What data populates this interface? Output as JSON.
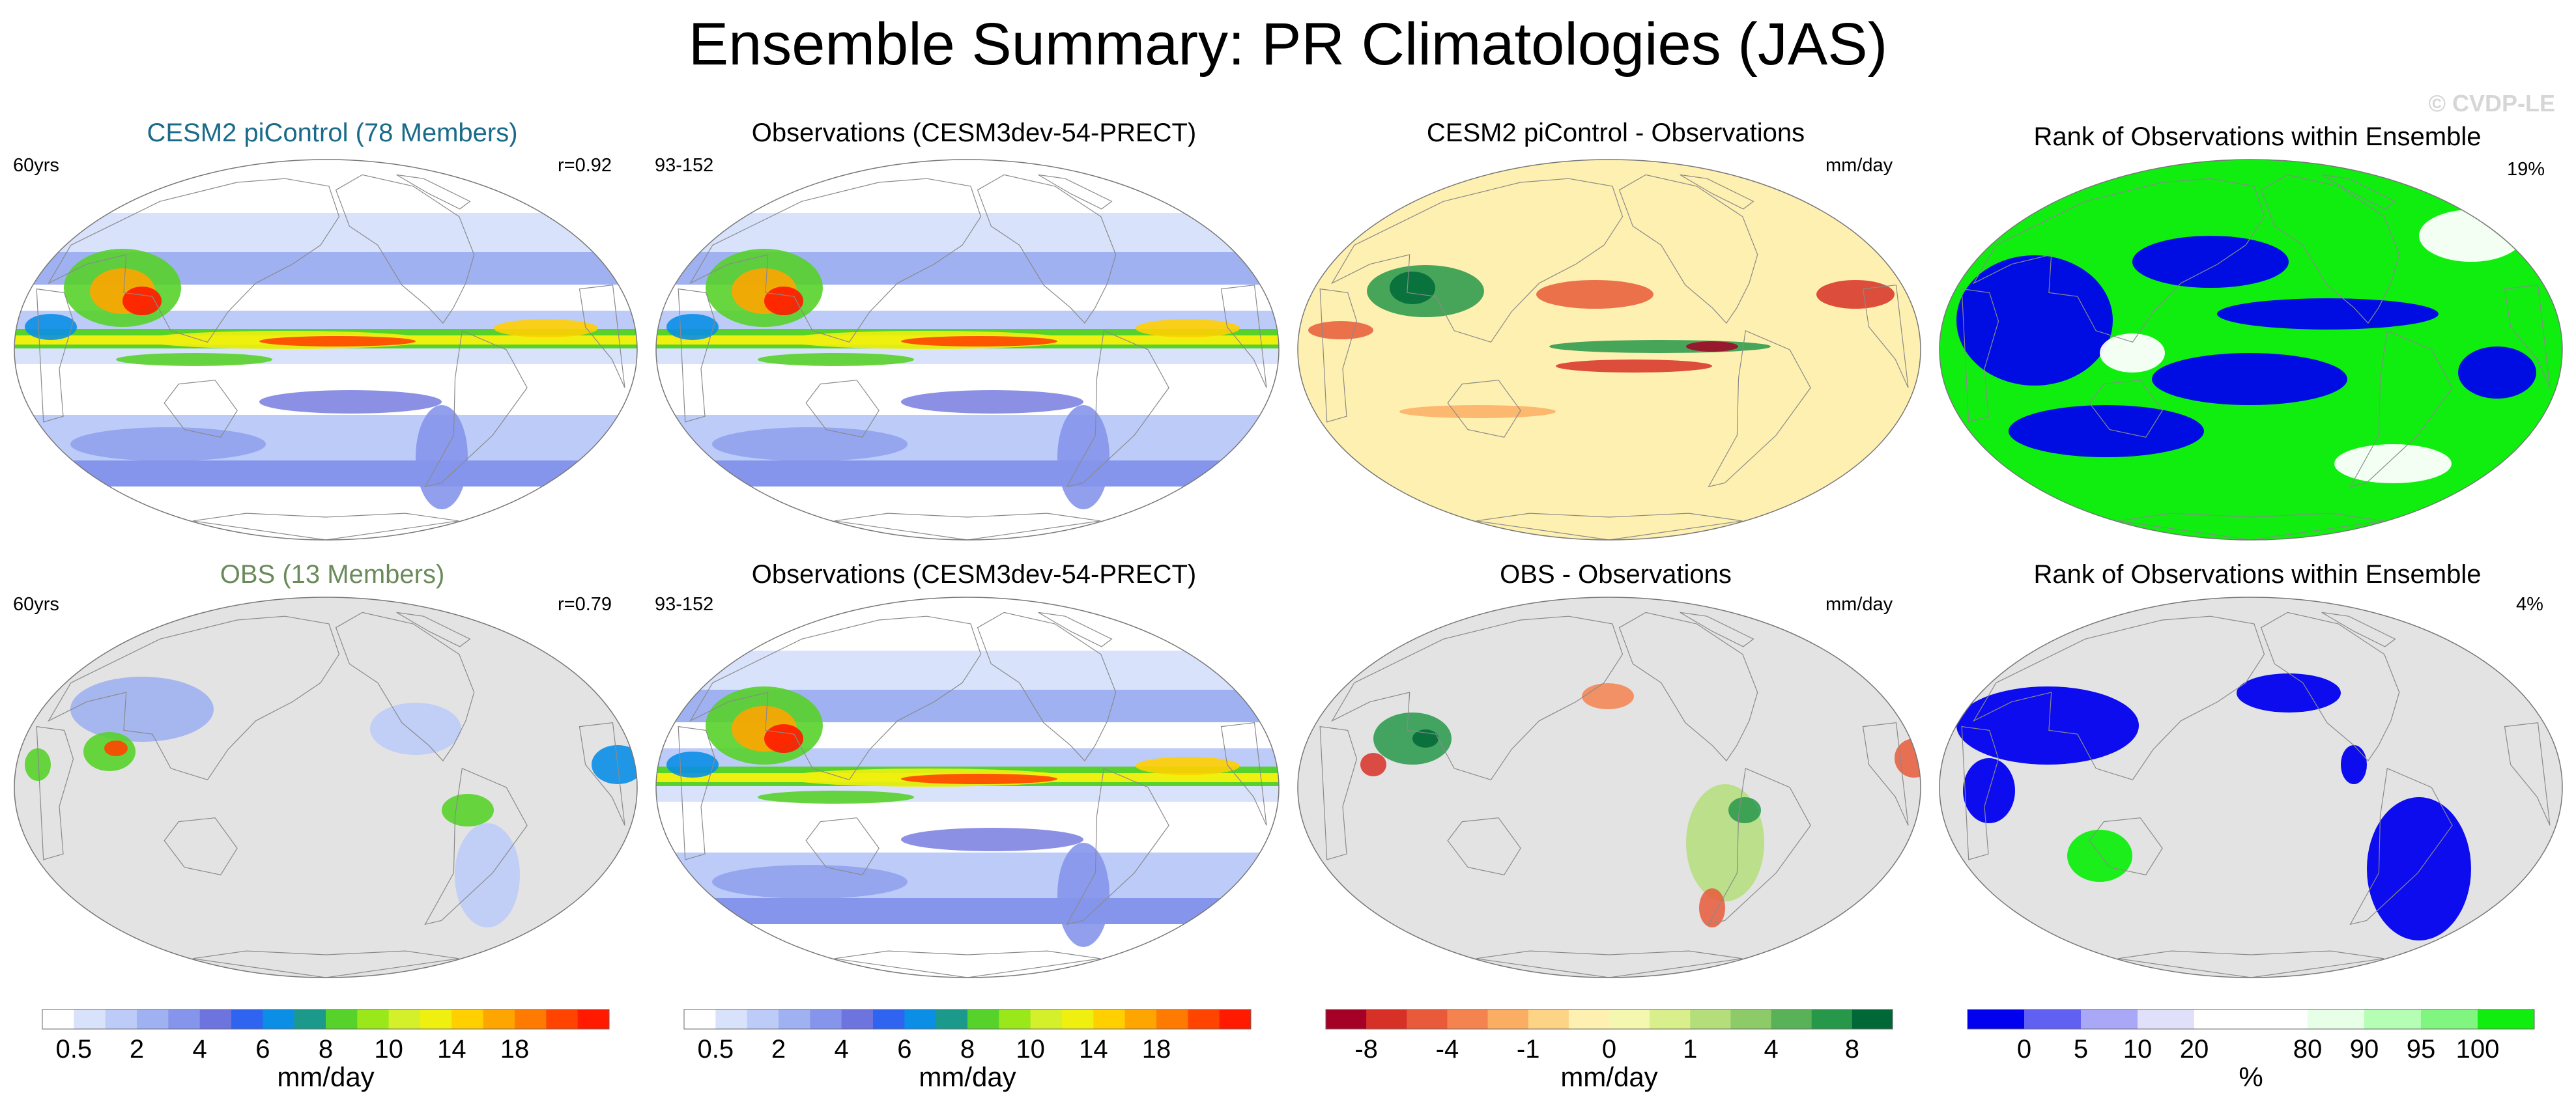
{
  "title": "Ensemble Summary: PR Climatologies (JAS)",
  "watermark": "© CVDP-LE",
  "colors": {
    "title_model": "#1a6a8a",
    "title_obs_ens": "#6a8a5a",
    "land_mask": "#e3e3e3",
    "coast": "#8a8a8a"
  },
  "panels": {
    "r1c1": {
      "title": "CESM2 piControl (78 Members)",
      "left_tag": "60yrs",
      "right_tag": "r=0.92"
    },
    "r1c2": {
      "title": "Observations (CESM3dev-54-PRECT)",
      "left_tag": "93-152",
      "right_tag": ""
    },
    "r1c3": {
      "title": "CESM2 piControl - Observations",
      "left_tag": "",
      "right_tag": "mm/day"
    },
    "r1c4": {
      "title": "Rank of Observations within Ensemble",
      "left_tag": "",
      "right_tag": "19%"
    },
    "r2c1": {
      "title": "OBS (13 Members)",
      "left_tag": "60yrs",
      "right_tag": "r=0.79"
    },
    "r2c2": {
      "title": "Observations (CESM3dev-54-PRECT)",
      "left_tag": "93-152",
      "right_tag": ""
    },
    "r2c3": {
      "title": "OBS - Observations",
      "left_tag": "",
      "right_tag": "mm/day"
    },
    "r2c4": {
      "title": "Rank of Observations within Ensemble",
      "left_tag": "",
      "right_tag": "4%"
    }
  },
  "colorbars": {
    "precip_1": {
      "unit": "mm/day",
      "colors": [
        "#ffffff",
        "#d9e2fb",
        "#bccbf7",
        "#9fb1f1",
        "#8595eb",
        "#6e74de",
        "#2f64f0",
        "#0a8ee6",
        "#1b9a8c",
        "#56d22a",
        "#9be81a",
        "#d3f02a",
        "#f0f010",
        "#ffcf00",
        "#ffa500",
        "#ff7a00",
        "#ff4400",
        "#ff1a00"
      ],
      "ticks": [
        {
          "label": "0.5",
          "boundary": 1
        },
        {
          "label": "2",
          "boundary": 3
        },
        {
          "label": "4",
          "boundary": 5
        },
        {
          "label": "6",
          "boundary": 7
        },
        {
          "label": "8",
          "boundary": 9
        },
        {
          "label": "10",
          "boundary": 11
        },
        {
          "label": "14",
          "boundary": 13
        },
        {
          "label": "18",
          "boundary": 15
        }
      ]
    },
    "precip_2": {
      "unit": "mm/day",
      "colors": [
        "#ffffff",
        "#d9e2fb",
        "#bccbf7",
        "#9fb1f1",
        "#8595eb",
        "#6e74de",
        "#2f64f0",
        "#0a8ee6",
        "#1b9a8c",
        "#56d22a",
        "#9be81a",
        "#d3f02a",
        "#f0f010",
        "#ffcf00",
        "#ffa500",
        "#ff7a00",
        "#ff4400",
        "#ff1a00"
      ],
      "ticks": [
        {
          "label": "0.5",
          "boundary": 1
        },
        {
          "label": "2",
          "boundary": 3
        },
        {
          "label": "4",
          "boundary": 5
        },
        {
          "label": "6",
          "boundary": 7
        },
        {
          "label": "8",
          "boundary": 9
        },
        {
          "label": "10",
          "boundary": 11
        },
        {
          "label": "14",
          "boundary": 13
        },
        {
          "label": "18",
          "boundary": 15
        }
      ]
    },
    "diff": {
      "unit": "mm/day",
      "colors": [
        "#a50026",
        "#d73027",
        "#e85a3a",
        "#f4834f",
        "#fbae63",
        "#fdd385",
        "#fef0b0",
        "#f4f7b0",
        "#d9ef8b",
        "#b4de7a",
        "#8ccb68",
        "#5ab258",
        "#27984a",
        "#006837"
      ],
      "ticks": [
        {
          "label": "-8",
          "boundary": 1
        },
        {
          "label": "-4",
          "boundary": 3
        },
        {
          "label": "-1",
          "boundary": 5
        },
        {
          "label": "0",
          "boundary": 7
        },
        {
          "label": "1",
          "boundary": 9
        },
        {
          "label": "4",
          "boundary": 11
        },
        {
          "label": "8",
          "boundary": 13
        }
      ]
    },
    "rank": {
      "unit": "%",
      "colors": [
        "#0000ee",
        "#6060f2",
        "#a8a8f6",
        "#e0e0fa",
        "#ffffff",
        "#ffffff",
        "#e6ffe6",
        "#b4ffb4",
        "#80f580",
        "#10ee10"
      ],
      "ticks": [
        {
          "label": "0",
          "boundary": 1
        },
        {
          "label": "5",
          "boundary": 2
        },
        {
          "label": "10",
          "boundary": 3
        },
        {
          "label": "20",
          "boundary": 4
        },
        {
          "label": "80",
          "boundary": 6
        },
        {
          "label": "90",
          "boundary": 7
        },
        {
          "label": "95",
          "boundary": 8
        },
        {
          "label": "100",
          "boundary": 9
        }
      ]
    }
  },
  "chart_data": [
    {
      "type": "heatmap",
      "title": "CESM2 piControl (78 Members)",
      "annotations": [
        "60yrs",
        "r=0.92"
      ],
      "colorbar": "precip_1",
      "field": "global JAS precipitation climatology; maxima along ITCZ, South Asian monsoon, western Pacific warm pool"
    },
    {
      "type": "heatmap",
      "title": "Observations (CESM3dev-54-PRECT)",
      "annotations": [
        "93-152"
      ],
      "colorbar": "precip_1",
      "field": "global JAS precipitation climatology"
    },
    {
      "type": "heatmap",
      "title": "CESM2 piControl - Observations",
      "annotations": [
        "mm/day"
      ],
      "colorbar": "diff",
      "field": "difference, ranges -8 to 8 mm/day"
    },
    {
      "type": "heatmap",
      "title": "Rank of Observations within Ensemble",
      "annotations": [
        "19%"
      ],
      "colorbar": "rank",
      "field": "rank percentile 0 to 100 %"
    },
    {
      "type": "heatmap",
      "title": "OBS (13 Members)",
      "annotations": [
        "60yrs",
        "r=0.79"
      ],
      "colorbar": "precip_1",
      "field": "land-only precipitation climatology; oceans masked gray"
    },
    {
      "type": "heatmap",
      "title": "Observations (CESM3dev-54-PRECT)",
      "annotations": [
        "93-152"
      ],
      "colorbar": "precip_2",
      "field": "global JAS precipitation climatology"
    },
    {
      "type": "heatmap",
      "title": "OBS - Observations",
      "annotations": [
        "mm/day"
      ],
      "colorbar": "diff",
      "field": "land-only difference; oceans masked gray"
    },
    {
      "type": "heatmap",
      "title": "Rank of Observations within Ensemble",
      "annotations": [
        "4%"
      ],
      "colorbar": "rank",
      "field": "land-only rank percentile; oceans masked gray"
    }
  ]
}
